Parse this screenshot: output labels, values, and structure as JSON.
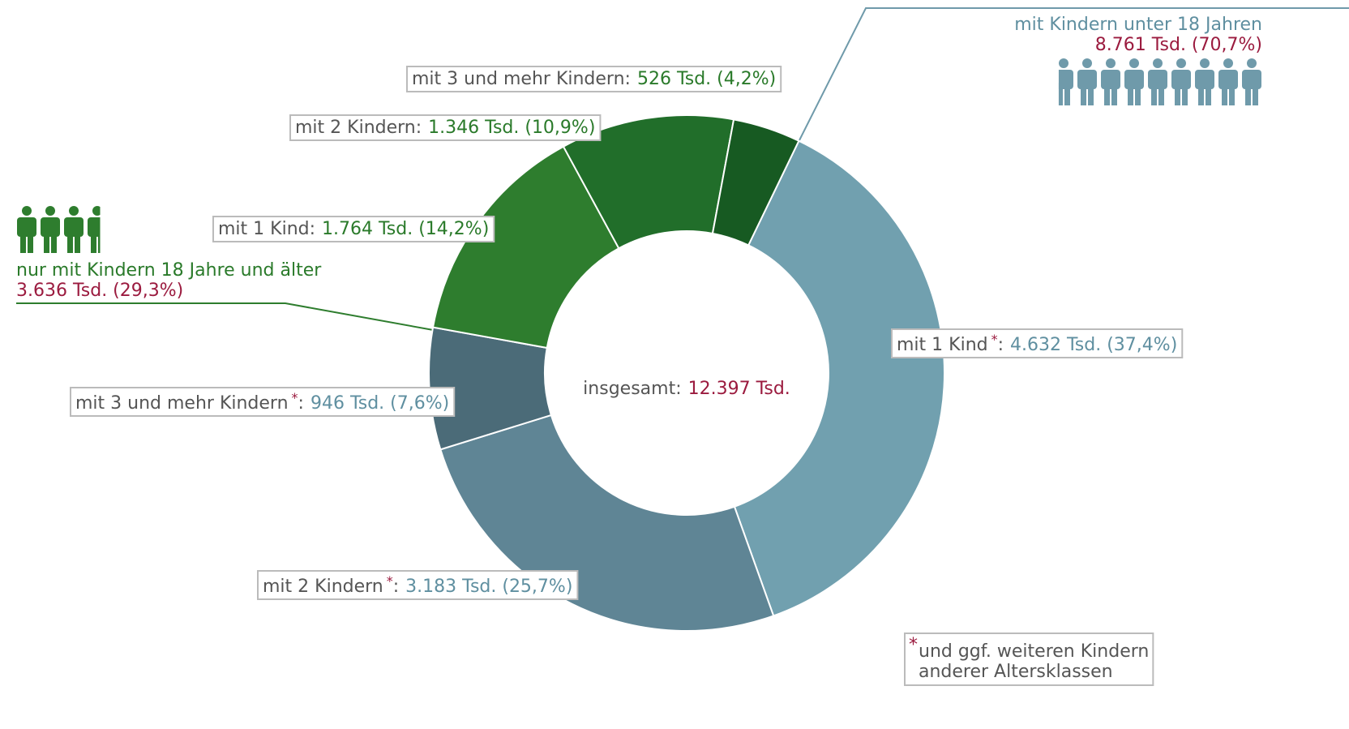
{
  "chart_data": {
    "type": "donut",
    "center_label": "insgesamt:",
    "center_value_label": "12.397 Tsd.",
    "categories": [
      "mit 1 Kind",
      "mit 2 Kindern",
      "mit 3 und mehr Kindern",
      "mit 1 Kind",
      "mit 2 Kindern",
      "mit 3 und mehr Kindern"
    ],
    "values": [
      4632,
      3183,
      946,
      1764,
      1346,
      526
    ],
    "value_labels": [
      "4.632 Tsd. (37,4%)",
      "3.183 Tsd. (25,7%)",
      "946 Tsd. (7,6%)",
      "1.764 Tsd. (14,2%)",
      "1.346 Tsd. (10,9%)",
      "526 Tsd. (4,2%)"
    ],
    "colors": [
      "#71a0af",
      "#5f8595",
      "#4b6b78",
      "#2e7d2e",
      "#216e2a",
      "#175a22"
    ],
    "slice_group": [
      0,
      0,
      0,
      1,
      1,
      1
    ],
    "starred": [
      true,
      true,
      true,
      false,
      false,
      false
    ],
    "separator": ":",
    "footnote_marker": "*",
    "footnote": [
      "und ggf. weiteren Kindern",
      "anderer Altersklassen"
    ],
    "groups": [
      {
        "name": "mit Kindern unter 18 Jahren",
        "value": 8761,
        "value_label": "8.761 Tsd. (70,7%)",
        "color": "#6f9aaa",
        "text_color": "#5f8fa0"
      },
      {
        "name": "nur mit Kindern 18 Jahre und älter",
        "value": 3636,
        "value_label": "3.636 Tsd. (29,3%)",
        "color": "#2e7d2e",
        "text_color": "#2a7a2a"
      }
    ]
  }
}
